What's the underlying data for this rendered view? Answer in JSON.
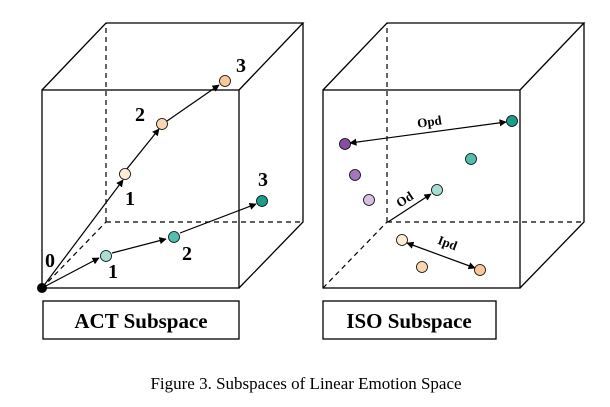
{
  "left_panel": {
    "title": "ACT Subspace",
    "origin_label": "0",
    "upper_labels": [
      "1",
      "2",
      "3"
    ],
    "lower_labels": [
      "1",
      "2",
      "3"
    ]
  },
  "right_panel": {
    "title": "ISO Subspace",
    "distance_labels": {
      "opd": "Opd",
      "od": "Od",
      "ipd": "Ipd"
    }
  },
  "caption": "Figure 3. Subspaces of Linear Emotion Space",
  "colors": {
    "peach": "#fad7b0",
    "peach_light": "#fdebd6",
    "orange": "#f8c79a",
    "teal_dark": "#1b9d8b",
    "teal_mid": "#52bfae",
    "teal_light": "#a9ddd4",
    "purple_dark": "#8a4da4",
    "purple_mid": "#a377bb",
    "purple_light": "#d4c0e1",
    "line": "#000000"
  }
}
